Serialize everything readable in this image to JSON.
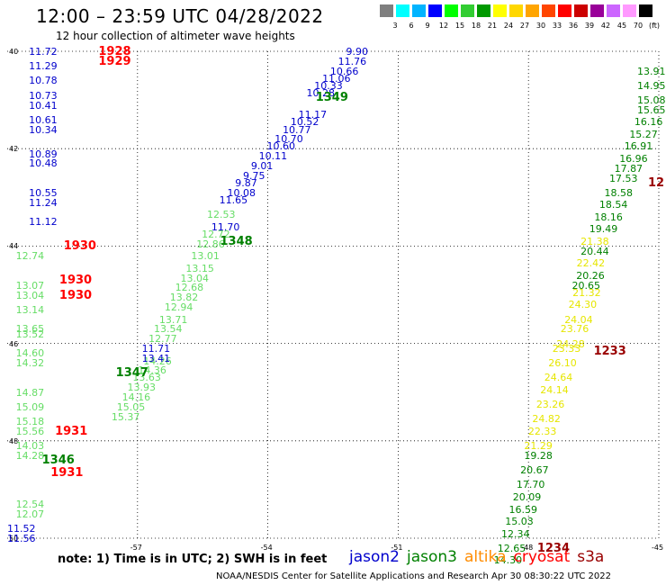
{
  "title": "12:00 – 23:59 UTC 04/28/2022",
  "subtitle": "12 hour collection of altimeter wave heights",
  "scale": {
    "labels": [
      "3",
      "6",
      "9",
      "12",
      "15",
      "18",
      "21",
      "24",
      "27",
      "30",
      "33",
      "36",
      "39",
      "42",
      "45",
      "70",
      "(ft)"
    ],
    "colors": [
      "#7f7f7f",
      "#00ffff",
      "#00b4ff",
      "#0000ff",
      "#00ff00",
      "#32cd32",
      "#009900",
      "#ffff00",
      "#ffd700",
      "#ffa500",
      "#ff4500",
      "#ff0000",
      "#cc0000",
      "#990099",
      "#cc66ff",
      "#ff99ff",
      "#000000"
    ]
  },
  "axes": {
    "lon": [
      "-57",
      "-54",
      "-51",
      "-48",
      "-45"
    ],
    "lat": [
      "40",
      "42",
      "44",
      "46",
      "48",
      "50"
    ]
  },
  "grid": {
    "lon_min": -60,
    "lon_max": -45,
    "lat_top": 40,
    "lat_bottom": 50
  },
  "pass_colors": {
    "jason2": "#0000cc",
    "jason3": "#008000",
    "jason3_light": "#66dd66",
    "altika": "#ff8c00",
    "cryosat": "#ff0000",
    "s3a": "#990000",
    "yellow": "#e6e600"
  },
  "passes": {
    "west_blue": {
      "color": "jason2",
      "lon": -59.5,
      "items": [
        [
          40.0,
          "11.72"
        ],
        [
          40.3,
          "11.29"
        ],
        [
          40.6,
          "10.78"
        ],
        [
          40.9,
          "10.73"
        ],
        [
          41.1,
          "10.41"
        ],
        [
          41.4,
          "10.61"
        ],
        [
          41.6,
          "10.34"
        ],
        [
          42.1,
          "10.89"
        ],
        [
          42.3,
          "10.48"
        ],
        [
          42.9,
          "10.55"
        ],
        [
          43.1,
          "11.24"
        ],
        [
          43.5,
          "11.12"
        ]
      ]
    },
    "west_green": {
      "color": "jason3_light",
      "lon": -59.8,
      "items": [
        [
          44.2,
          "12.74"
        ],
        [
          44.8,
          "13.07"
        ],
        [
          45.0,
          "13.04"
        ],
        [
          45.3,
          "13.14"
        ],
        [
          45.7,
          "13.65"
        ],
        [
          45.8,
          "13.52"
        ],
        [
          46.2,
          "14.60"
        ],
        [
          46.4,
          "14.32"
        ],
        [
          47.0,
          "14.87"
        ],
        [
          47.3,
          "15.09"
        ],
        [
          47.6,
          "15.18"
        ],
        [
          47.8,
          "15.56"
        ],
        [
          48.1,
          "14.03"
        ],
        [
          48.3,
          "14.28"
        ],
        [
          49.3,
          "12.54"
        ],
        [
          49.5,
          "12.07"
        ]
      ]
    },
    "west_blue2": {
      "color": "jason2",
      "lon": -60.0,
      "items": [
        [
          49.8,
          "11.52"
        ],
        [
          50.0,
          "11.56"
        ]
      ]
    },
    "mid_blue": {
      "color": "jason2",
      "lon_start": -52.2,
      "lon_end": -55.3,
      "items": [
        [
          40.0,
          "9.90"
        ],
        [
          40.2,
          "11.76"
        ],
        [
          40.4,
          "10.66"
        ],
        [
          40.55,
          "11.06"
        ],
        [
          40.7,
          "10.33"
        ],
        [
          40.85,
          "10.28"
        ],
        [
          41.3,
          "11.17"
        ],
        [
          41.45,
          "10.52"
        ],
        [
          41.6,
          "10.77"
        ],
        [
          41.8,
          "10.70"
        ],
        [
          41.95,
          "10.60"
        ],
        [
          42.15,
          "10.11"
        ],
        [
          42.35,
          "9.01"
        ],
        [
          42.55,
          "9.75"
        ],
        [
          42.7,
          "9.87"
        ],
        [
          42.9,
          "10.08"
        ],
        [
          43.05,
          "11.65"
        ],
        [
          43.6,
          "11.70"
        ]
      ]
    },
    "mid_green": {
      "color": "jason3_light",
      "lon_start": -55.4,
      "lon_end": -57.6,
      "items": [
        [
          43.35,
          "12.53"
        ],
        [
          43.75,
          "12.72"
        ],
        [
          43.95,
          "12.86"
        ],
        [
          44.2,
          "13.01"
        ],
        [
          44.45,
          "13.15"
        ],
        [
          44.65,
          "13.04"
        ],
        [
          44.85,
          "12.68"
        ],
        [
          45.05,
          "13.82"
        ],
        [
          45.25,
          "12.94"
        ],
        [
          45.5,
          "13.71"
        ],
        [
          45.7,
          "13.54"
        ],
        [
          45.9,
          "12.77"
        ],
        [
          46.35,
          "14.26"
        ],
        [
          46.55,
          "14.36"
        ],
        [
          46.7,
          "13.63"
        ],
        [
          46.9,
          "13.93"
        ],
        [
          47.1,
          "14.16"
        ],
        [
          47.3,
          "15.05"
        ],
        [
          47.5,
          "15.37"
        ]
      ]
    },
    "mid_blue_lower": {
      "color": "jason2",
      "lon": -56.9,
      "items": [
        [
          46.1,
          "11.71"
        ],
        [
          46.3,
          "13.41"
        ]
      ]
    },
    "east_green": {
      "color": "jason3",
      "lon_start": -45.1,
      "lon_end": -46.6,
      "items": [
        [
          40.4,
          "13.91"
        ],
        [
          40.7,
          "14.95"
        ],
        [
          41.0,
          "15.08"
        ],
        [
          41.2,
          "15.65"
        ],
        [
          41.45,
          "16.16"
        ],
        [
          41.7,
          "15.27"
        ],
        [
          41.95,
          "16.91"
        ],
        [
          42.2,
          "16.96"
        ],
        [
          42.4,
          "17.87"
        ],
        [
          42.6,
          "17.53"
        ],
        [
          42.9,
          "18.58"
        ],
        [
          43.15,
          "18.54"
        ],
        [
          43.4,
          "18.16"
        ],
        [
          43.65,
          "19.49"
        ]
      ]
    },
    "east_yellow": {
      "color": "yellow",
      "lon_start": -46.8,
      "lon_end": -48.1,
      "items": [
        [
          43.9,
          "21.38"
        ],
        [
          44.35,
          "22.42"
        ],
        [
          44.95,
          "21.32"
        ],
        [
          45.2,
          "24.30"
        ],
        [
          45.5,
          "24.04"
        ],
        [
          45.7,
          "23.76"
        ],
        [
          46.0,
          "24.28"
        ],
        [
          46.1,
          "23.33"
        ],
        [
          46.4,
          "26.10"
        ],
        [
          46.7,
          "24.64"
        ],
        [
          46.95,
          "24.14"
        ],
        [
          47.25,
          "23.26"
        ],
        [
          47.55,
          "24.82"
        ],
        [
          47.8,
          "22.33"
        ],
        [
          48.1,
          "21.29"
        ]
      ]
    },
    "east_green2": {
      "color": "jason3",
      "lon_start": -46.8,
      "lon_end": -47.0,
      "items": [
        [
          44.1,
          "20.44"
        ],
        [
          44.6,
          "20.26"
        ],
        [
          44.8,
          "20.65"
        ]
      ]
    },
    "south_green": {
      "color": "jason3",
      "lon_start": -48.1,
      "lon_end": -48.8,
      "items": [
        [
          48.3,
          "19.28"
        ],
        [
          48.6,
          "20.67"
        ],
        [
          48.9,
          "17.70"
        ],
        [
          49.15,
          "20.09"
        ],
        [
          49.4,
          "16.59"
        ],
        [
          49.65,
          "15.03"
        ],
        [
          49.9,
          "12.34"
        ],
        [
          50.2,
          "12.65"
        ],
        [
          50.45,
          "14.30"
        ]
      ]
    }
  },
  "time_labels": [
    {
      "text": "1928",
      "color": "cryosat",
      "lon": -57.9,
      "lat": 40.0
    },
    {
      "text": "1929",
      "color": "cryosat",
      "lon": -57.9,
      "lat": 40.2
    },
    {
      "text": "1930",
      "color": "cryosat",
      "lon": -58.7,
      "lat": 44.0
    },
    {
      "text": "1930",
      "color": "cryosat",
      "lon": -58.8,
      "lat": 44.7
    },
    {
      "text": "1930",
      "color": "cryosat",
      "lon": -58.8,
      "lat": 45.0
    },
    {
      "text": "1931",
      "color": "cryosat",
      "lon": -58.9,
      "lat": 47.8
    },
    {
      "text": "1931",
      "color": "cryosat",
      "lon": -59.0,
      "lat": 48.65
    },
    {
      "text": "1346",
      "color": "jason3",
      "lon": -59.2,
      "lat": 48.4
    },
    {
      "text": "1347",
      "color": "jason3",
      "lon": -57.5,
      "lat": 46.6
    },
    {
      "text": "1348",
      "color": "jason3",
      "lon": -55.1,
      "lat": 43.9
    },
    {
      "text": "1349",
      "color": "jason3",
      "lon": -52.9,
      "lat": 40.95
    },
    {
      "text": "1233",
      "color": "s3a",
      "lon": -46.5,
      "lat": 46.15
    },
    {
      "text": "1234",
      "color": "s3a",
      "lon": -47.8,
      "lat": 50.2
    },
    {
      "text": "12",
      "color": "s3a",
      "lon": -45.1,
      "lat": 42.7
    }
  ],
  "note": "note: 1) Time is in UTC; 2) SWH is in feet",
  "legend": [
    {
      "name": "jason2",
      "color": "#0000cc"
    },
    {
      "name": "jason3",
      "color": "#008000"
    },
    {
      "name": "altika",
      "color": "#ff8c00"
    },
    {
      "name": "cryosat",
      "color": "#ff0000"
    },
    {
      "name": "s3a",
      "color": "#990000"
    }
  ],
  "footer": "NOAA/NESDIS Center for Satellite Applications and Research   Apr 30 08:30:22 UTC 2022"
}
